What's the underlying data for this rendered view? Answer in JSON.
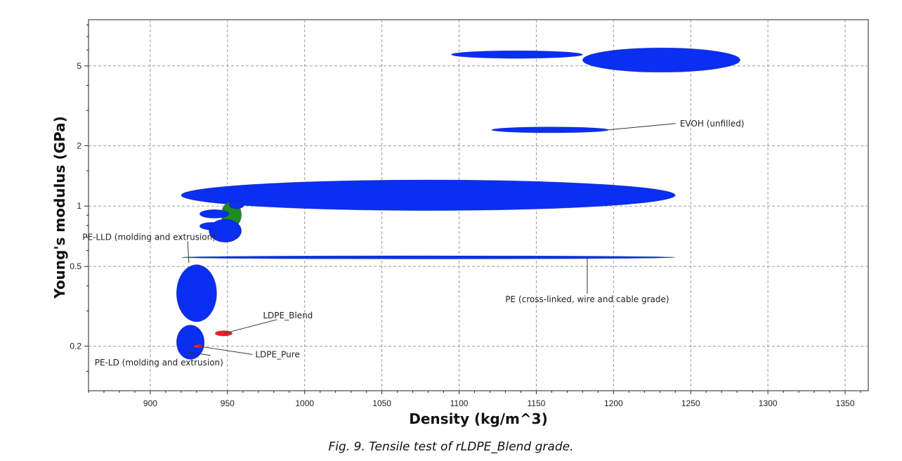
{
  "caption": "Fig. 9. Tensile test of rLDPE_Blend grade.",
  "chart_data": {
    "type": "scatter",
    "xlabel": "Density (kg/m^3)",
    "ylabel": "Young's modulus (GPa)",
    "xscale": "linear",
    "yscale": "log",
    "xlim": [
      860,
      1365
    ],
    "ylim": [
      0.12,
      8.5
    ],
    "xticks": [
      900,
      950,
      1000,
      1050,
      1100,
      1150,
      1200,
      1250,
      1300,
      1350
    ],
    "yticks": [
      0.2,
      0.5,
      1,
      2,
      5
    ],
    "ytick_labels": [
      "0.2",
      "0.5",
      "1",
      "2",
      "5"
    ],
    "grid": true,
    "colors": {
      "material": "#0a2ff2",
      "blend": "#ee2222",
      "green": "#1e8a22",
      "grid": "#9a9a9a"
    },
    "bubbles": [
      {
        "x_range": [
          1095,
          1180
        ],
        "y_range": [
          5.45,
          5.95
        ],
        "color": "blue"
      },
      {
        "x_range": [
          1180,
          1282
        ],
        "y_range": [
          4.65,
          6.15
        ],
        "color": "blue"
      },
      {
        "x_range": [
          1121,
          1197
        ],
        "y_range": [
          2.32,
          2.48
        ],
        "color": "blue"
      },
      {
        "x_range": [
          920,
          1240
        ],
        "y_range": [
          0.95,
          1.35
        ],
        "color": "blue"
      },
      {
        "x_range": [
          946,
          959
        ],
        "y_range": [
          0.78,
          1.05
        ],
        "color": "green"
      },
      {
        "x_range": [
          951,
          961
        ],
        "y_range": [
          0.97,
          1.07
        ],
        "color": "blue"
      },
      {
        "x_range": [
          932,
          951
        ],
        "y_range": [
          0.87,
          0.96
        ],
        "color": "blue"
      },
      {
        "x_range": [
          932,
          948
        ],
        "y_range": [
          0.76,
          0.83
        ],
        "color": "blue"
      },
      {
        "x_range": [
          938,
          959
        ],
        "y_range": [
          0.66,
          0.86
        ],
        "color": "blue"
      },
      {
        "x_range": [
          920,
          1240
        ],
        "y_range": [
          0.545,
          0.565
        ],
        "color": "blue"
      },
      {
        "x_range": [
          917,
          943
        ],
        "y_range": [
          0.265,
          0.51
        ],
        "color": "blue"
      },
      {
        "x_range": [
          917,
          935
        ],
        "y_range": [
          0.172,
          0.255
        ],
        "color": "blue"
      },
      {
        "x_range": [
          942,
          953
        ],
        "y_range": [
          0.225,
          0.239
        ],
        "color": "red"
      },
      {
        "x_range": [
          928,
          934
        ],
        "y_range": [
          0.196,
          0.204
        ],
        "color": "red"
      }
    ],
    "annotations": [
      {
        "text": "EVOH (unfilled)",
        "point": [
          1197,
          2.4
        ],
        "label_pos": [
          1243,
          2.58
        ]
      },
      {
        "text": "PE-LLD (molding and extrusion)",
        "point": [
          925,
          0.52
        ],
        "label_pos": [
          856,
          0.7
        ]
      },
      {
        "text": "PE (cross-linked, wire and cable grade)",
        "point": [
          1183,
          0.555
        ],
        "label_pos": [
          1183,
          0.342
        ]
      },
      {
        "text": "LDPE_Blend",
        "point": [
          948,
          0.232
        ],
        "label_pos": [
          973,
          0.285
        ]
      },
      {
        "text": "LDPE_Pure",
        "point": [
          931,
          0.2
        ],
        "label_pos": [
          968,
          0.182
        ]
      },
      {
        "text": "PE-LD (molding and extrusion)",
        "point": [
          923,
          0.188
        ],
        "label_pos": [
          864,
          0.166
        ]
      }
    ]
  }
}
